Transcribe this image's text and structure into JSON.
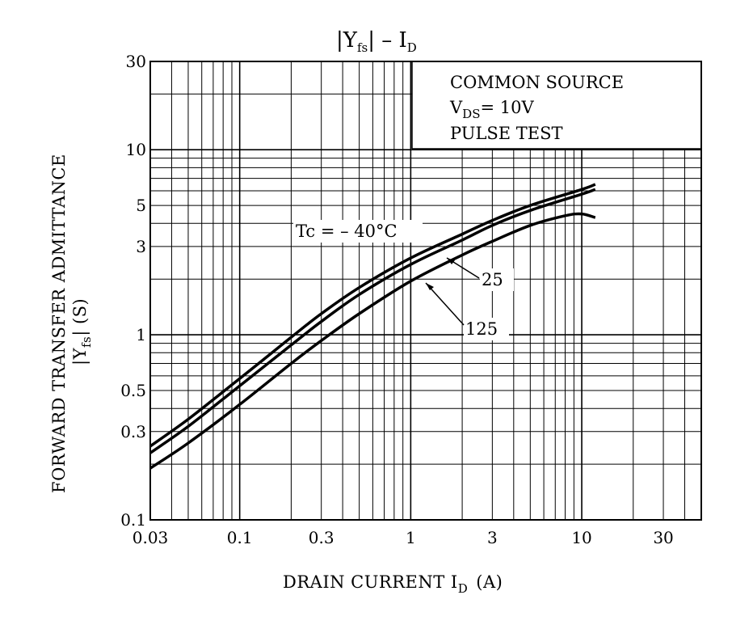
{
  "chart_data": {
    "type": "line",
    "title_main": "|Y",
    "title_sub": "fs",
    "title_end": "| – I",
    "title_end_sub": "D",
    "xlabel_main": "DRAIN CURRENT  I",
    "xlabel_sub": "D",
    "xlabel_unit": "(A)",
    "ylabel_line1": "FORWARD TRANSFER ADMITTANCE",
    "ylabel_line2_main": "|Y",
    "ylabel_line2_sub": "fs",
    "ylabel_line2_end": "|  (S)",
    "x_scale": "log",
    "y_scale": "log",
    "xlim": [
      0.03,
      50
    ],
    "ylim": [
      0.1,
      30
    ],
    "x_ticks": [
      {
        "v": 0.03,
        "label": "0.03"
      },
      {
        "v": 0.1,
        "label": "0.1"
      },
      {
        "v": 0.3,
        "label": "0.3"
      },
      {
        "v": 1,
        "label": "1"
      },
      {
        "v": 3,
        "label": "3"
      },
      {
        "v": 10,
        "label": "10"
      },
      {
        "v": 30,
        "label": "30"
      }
    ],
    "y_ticks": [
      {
        "v": 0.1,
        "label": "0.1"
      },
      {
        "v": 0.3,
        "label": "0.3"
      },
      {
        "v": 0.5,
        "label": "0.5"
      },
      {
        "v": 1,
        "label": "1"
      },
      {
        "v": 3,
        "label": "3"
      },
      {
        "v": 5,
        "label": "5"
      },
      {
        "v": 10,
        "label": "10"
      },
      {
        "v": 30,
        "label": "30"
      }
    ],
    "grid": true,
    "conditions": {
      "line1": "COMMON SOURCE",
      "line2_main": "V",
      "line2_sub": "DS",
      "line2_end": "= 10V",
      "line3": "PULSE TEST"
    },
    "series": [
      {
        "name": "Tc = – 40°C",
        "x": [
          0.03,
          0.05,
          0.1,
          0.2,
          0.3,
          0.5,
          1,
          2,
          3,
          5,
          10,
          12
        ],
        "y": [
          0.25,
          0.35,
          0.58,
          0.97,
          1.3,
          1.8,
          2.6,
          3.5,
          4.15,
          5.0,
          6.1,
          6.5
        ]
      },
      {
        "name": "25",
        "x": [
          0.03,
          0.05,
          0.1,
          0.2,
          0.3,
          0.5,
          1,
          2,
          3,
          5,
          10,
          12
        ],
        "y": [
          0.23,
          0.32,
          0.53,
          0.88,
          1.18,
          1.65,
          2.4,
          3.25,
          3.9,
          4.7,
          5.75,
          6.1
        ]
      },
      {
        "name": "125",
        "x": [
          0.03,
          0.05,
          0.1,
          0.2,
          0.3,
          0.5,
          1,
          2,
          3,
          5,
          8,
          10,
          12
        ],
        "y": [
          0.19,
          0.26,
          0.42,
          0.7,
          0.93,
          1.3,
          1.95,
          2.7,
          3.2,
          3.9,
          4.4,
          4.5,
          4.3
        ]
      }
    ]
  }
}
